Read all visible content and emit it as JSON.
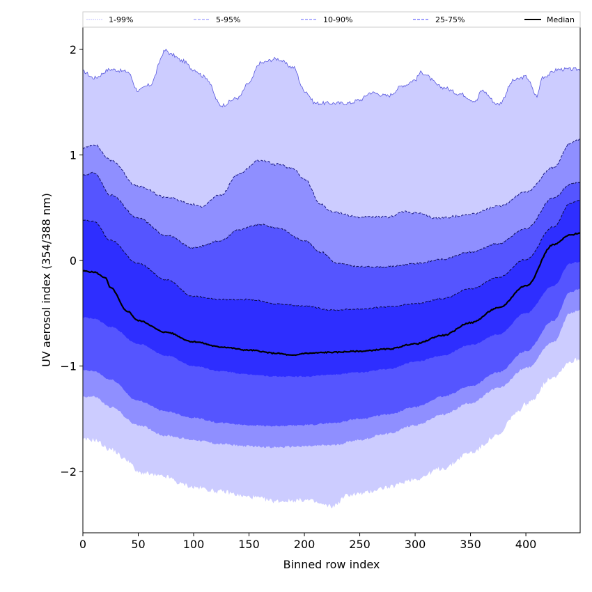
{
  "chart_data": {
    "type": "area",
    "title": "",
    "xlabel": "Binned row index",
    "ylabel": "UV aerosol index (354/388 nm)",
    "xlim": [
      0,
      449
    ],
    "ylim": [
      -2.58,
      2.21
    ],
    "xticks": [
      0,
      50,
      100,
      150,
      200,
      250,
      300,
      350,
      400
    ],
    "yticks": [
      -2,
      -1,
      0,
      1,
      2
    ],
    "ytick_labels": [
      "−2",
      "−1",
      "0",
      "1",
      "2"
    ],
    "grid": false,
    "legend_placement": "top (above axes, single row)",
    "legend": [
      {
        "label": "1-99%",
        "style": "dashed",
        "color": "#ccccff"
      },
      {
        "label": "5-95%",
        "style": "dashed",
        "color": "#9a9aff"
      },
      {
        "label": "10-90%",
        "style": "dashed",
        "color": "#8080ff"
      },
      {
        "label": "25-75%",
        "style": "dashed",
        "color": "#6666ff"
      },
      {
        "label": "Median",
        "style": "solid",
        "color": "#000000"
      }
    ],
    "bands": [
      {
        "name": "1-99%",
        "fill": "#ccccff",
        "upper": {
          "x": [
            0,
            10,
            25,
            40,
            50,
            60,
            75,
            80,
            90,
            100,
            110,
            125,
            140,
            150,
            160,
            175,
            190,
            200,
            210,
            225,
            240,
            250,
            260,
            275,
            290,
            300,
            305,
            325,
            340,
            355,
            360,
            375,
            390,
            400,
            410,
            415,
            430,
            449
          ],
          "y": [
            1.79,
            1.73,
            1.81,
            1.79,
            1.61,
            1.66,
            1.99,
            1.95,
            1.89,
            1.81,
            1.74,
            1.47,
            1.54,
            1.68,
            1.87,
            1.91,
            1.83,
            1.61,
            1.49,
            1.49,
            1.49,
            1.52,
            1.59,
            1.56,
            1.66,
            1.71,
            1.78,
            1.64,
            1.58,
            1.51,
            1.61,
            1.48,
            1.71,
            1.74,
            1.56,
            1.74,
            1.81,
            1.81
          ]
        },
        "lower": {
          "x": [
            0,
            10,
            25,
            40,
            50,
            75,
            90,
            100,
            125,
            150,
            175,
            200,
            225,
            240,
            250,
            275,
            300,
            325,
            350,
            375,
            390,
            400,
            425,
            440,
            449
          ],
          "y": [
            -1.7,
            -1.7,
            -1.79,
            -1.89,
            -2.01,
            -2.05,
            -2.12,
            -2.15,
            -2.19,
            -2.24,
            -2.28,
            -2.27,
            -2.33,
            -2.22,
            -2.21,
            -2.15,
            -2.07,
            -1.97,
            -1.82,
            -1.66,
            -1.46,
            -1.36,
            -1.1,
            -0.96,
            -0.93
          ]
        },
        "upper_line_color": "#5555dd"
      },
      {
        "name": "5-95%",
        "fill": "#8f8fff",
        "upper": {
          "x": [
            0,
            10,
            25,
            50,
            75,
            100,
            105,
            125,
            140,
            160,
            175,
            190,
            200,
            215,
            225,
            250,
            275,
            290,
            300,
            320,
            340,
            350,
            375,
            400,
            425,
            440,
            449
          ],
          "y": [
            1.06,
            1.1,
            0.95,
            0.7,
            0.6,
            0.53,
            0.51,
            0.62,
            0.82,
            0.95,
            0.91,
            0.87,
            0.77,
            0.53,
            0.46,
            0.41,
            0.41,
            0.46,
            0.45,
            0.4,
            0.42,
            0.44,
            0.51,
            0.65,
            0.88,
            1.11,
            1.14
          ]
        },
        "lower": {
          "x": [
            0,
            10,
            25,
            50,
            75,
            100,
            125,
            150,
            175,
            200,
            225,
            250,
            275,
            300,
            325,
            350,
            375,
            400,
            425,
            440,
            449
          ],
          "y": [
            -1.29,
            -1.29,
            -1.39,
            -1.56,
            -1.66,
            -1.7,
            -1.74,
            -1.76,
            -1.77,
            -1.76,
            -1.75,
            -1.7,
            -1.64,
            -1.56,
            -1.46,
            -1.35,
            -1.21,
            -1.02,
            -0.77,
            -0.5,
            -0.47
          ]
        },
        "upper_line_color": "#1a1a80"
      },
      {
        "name": "10-90%",
        "fill": "#5555ff",
        "upper": {
          "x": [
            0,
            10,
            25,
            50,
            75,
            100,
            125,
            140,
            160,
            175,
            200,
            215,
            230,
            250,
            275,
            300,
            325,
            350,
            375,
            400,
            425,
            440,
            449
          ],
          "y": [
            0.81,
            0.83,
            0.62,
            0.4,
            0.24,
            0.12,
            0.19,
            0.29,
            0.34,
            0.31,
            0.19,
            0.08,
            -0.03,
            -0.06,
            -0.06,
            -0.03,
            0.01,
            0.08,
            0.16,
            0.3,
            0.59,
            0.72,
            0.74
          ]
        },
        "lower": {
          "x": [
            0,
            10,
            25,
            50,
            75,
            100,
            125,
            150,
            175,
            200,
            225,
            250,
            275,
            300,
            325,
            350,
            375,
            400,
            425,
            440,
            449
          ],
          "y": [
            -1.04,
            -1.05,
            -1.13,
            -1.33,
            -1.43,
            -1.49,
            -1.54,
            -1.56,
            -1.57,
            -1.56,
            -1.54,
            -1.5,
            -1.46,
            -1.39,
            -1.29,
            -1.19,
            -1.06,
            -0.86,
            -0.57,
            -0.3,
            -0.27
          ]
        },
        "upper_line_color": "#10105a"
      },
      {
        "name": "25-75%",
        "fill": "#2e2eff",
        "upper": {
          "x": [
            0,
            10,
            25,
            50,
            75,
            100,
            125,
            150,
            175,
            200,
            225,
            250,
            275,
            300,
            325,
            350,
            375,
            400,
            425,
            440,
            449
          ],
          "y": [
            0.38,
            0.37,
            0.19,
            -0.03,
            -0.18,
            -0.34,
            -0.37,
            -0.37,
            -0.41,
            -0.43,
            -0.47,
            -0.46,
            -0.44,
            -0.41,
            -0.36,
            -0.27,
            -0.16,
            0.01,
            0.32,
            0.54,
            0.57
          ]
        },
        "lower": {
          "x": [
            0,
            10,
            25,
            50,
            75,
            100,
            125,
            150,
            175,
            200,
            225,
            250,
            275,
            300,
            325,
            350,
            375,
            400,
            425,
            440,
            449
          ],
          "y": [
            -0.54,
            -0.55,
            -0.63,
            -0.79,
            -0.9,
            -1.0,
            -1.05,
            -1.08,
            -1.1,
            -1.1,
            -1.08,
            -1.06,
            -1.03,
            -0.96,
            -0.9,
            -0.8,
            -0.7,
            -0.5,
            -0.24,
            -0.03,
            -0.01
          ]
        },
        "upper_line_color": "#0a0a40"
      }
    ],
    "median": {
      "name": "Median",
      "color": "#000000",
      "x": [
        0,
        10,
        20,
        25,
        40,
        50,
        75,
        100,
        125,
        150,
        175,
        190,
        200,
        225,
        250,
        275,
        300,
        325,
        350,
        375,
        400,
        425,
        440,
        449
      ],
      "y": [
        -0.1,
        -0.11,
        -0.16,
        -0.26,
        -0.48,
        -0.57,
        -0.68,
        -0.77,
        -0.82,
        -0.85,
        -0.88,
        -0.9,
        -0.88,
        -0.87,
        -0.86,
        -0.84,
        -0.79,
        -0.71,
        -0.59,
        -0.45,
        -0.24,
        0.15,
        0.24,
        0.26
      ]
    }
  }
}
